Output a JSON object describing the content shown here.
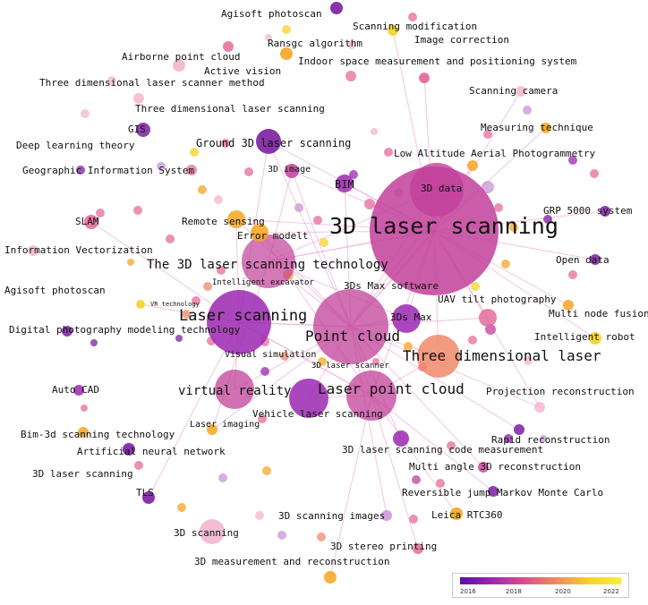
{
  "palette": {
    "purple": "#7b1fa2",
    "violet": "#9c27b0",
    "magenta": "#c2409a",
    "pink": "#e56b9b",
    "salmon": "#f08a6b",
    "orange": "#f5a623",
    "yellow": "#f5d327",
    "light_pink": "#f2b7cf",
    "lavender": "#c993d6",
    "edge": "#e9a8cf"
  },
  "labels": [
    {
      "id": "agisoft-top",
      "text": "Agisoft photoscan",
      "size": 11
    },
    {
      "id": "scanning-modification",
      "text": "Scanning modification",
      "size": 11
    },
    {
      "id": "image-correction",
      "text": "Image correction",
      "size": 11
    },
    {
      "id": "ransac",
      "text": "Ransgc algorithm",
      "size": 11
    },
    {
      "id": "airborne",
      "text": "Airborne point cloud",
      "size": 11
    },
    {
      "id": "indoor",
      "text": "Indoor space measurement and positioning system",
      "size": 11
    },
    {
      "id": "active-vision",
      "text": "Active vision",
      "size": 11
    },
    {
      "id": "tdlsm",
      "text": "Three dimensional laser scanner method",
      "size": 11
    },
    {
      "id": "scanning-camera",
      "text": "Scanning camera",
      "size": 11
    },
    {
      "id": "tdls",
      "text": "Three dimensional laser scanning",
      "size": 11
    },
    {
      "id": "measuring-technique",
      "text": "Measuring technique",
      "size": 11
    },
    {
      "id": "gis",
      "text": "GIS",
      "size": 11
    },
    {
      "id": "deep-learning",
      "text": "Deep learning theory",
      "size": 11
    },
    {
      "id": "ground-3d",
      "text": "Ground 3D laser scanning",
      "size": 12
    },
    {
      "id": "low-altitude",
      "text": "Low Altitude Aerial Photogrammetry",
      "size": 11
    },
    {
      "id": "geographic-is",
      "text": "Geographic Information System",
      "size": 11
    },
    {
      "id": "3d-image",
      "text": "3D image",
      "size": 10
    },
    {
      "id": "bim",
      "text": "BIM",
      "size": 12
    },
    {
      "id": "3d-data",
      "text": "3D data",
      "size": 11
    },
    {
      "id": "grp5000",
      "text": "GRP 5000 system",
      "size": 11
    },
    {
      "id": "slam",
      "text": "SLAM",
      "size": 11
    },
    {
      "id": "remote-sensing",
      "text": "Remote sensing",
      "size": 11
    },
    {
      "id": "3d-laser-scanning",
      "text": "3D laser scanning",
      "size": 25
    },
    {
      "id": "error-model",
      "text": "Error modelt",
      "size": 11
    },
    {
      "id": "info-vector",
      "text": "Information Vectorization",
      "size": 11
    },
    {
      "id": "open-data",
      "text": "Open data",
      "size": 11
    },
    {
      "id": "the-3d-tech",
      "text": "The 3D laser scanning technology",
      "size": 14
    },
    {
      "id": "agisoft-left",
      "text": "Agisoft photoscan",
      "size": 11
    },
    {
      "id": "intelligent-excavator",
      "text": "Intelligent excavator",
      "size": 9
    },
    {
      "id": "3ds-max-software",
      "text": "3Ds Max software",
      "size": 11
    },
    {
      "id": "uav",
      "text": "UAV tilt photography",
      "size": 11
    },
    {
      "id": "vr-technology",
      "text": "VR technology",
      "size": 7
    },
    {
      "id": "multi-node",
      "text": "Multi node fusion",
      "size": 11
    },
    {
      "id": "laser-scanning",
      "text": "Laser scanning",
      "size": 17
    },
    {
      "id": "3ds-max",
      "text": "3Ds Max",
      "size": 11
    },
    {
      "id": "digital-photo",
      "text": "Digital photography modeling technology",
      "size": 11
    },
    {
      "id": "point-cloud",
      "text": "Point cloud",
      "size": 16
    },
    {
      "id": "intelligent-robot",
      "text": "Intelligent robot",
      "size": 11
    },
    {
      "id": "visual-simulation",
      "text": "Visual simulation",
      "size": 10
    },
    {
      "id": "three-dim-laser",
      "text": "Three dimensional laser",
      "size": 16
    },
    {
      "id": "3d-laser-scanner",
      "text": "3D laser scanner",
      "size": 9
    },
    {
      "id": "auto-cad",
      "text": "Auto CAD",
      "size": 11
    },
    {
      "id": "virtual-reality",
      "text": "virtual reality",
      "size": 14
    },
    {
      "id": "laser-point-cloud",
      "text": "Laser point cloud",
      "size": 16
    },
    {
      "id": "projection-recon",
      "text": "Projection reconstruction",
      "size": 11
    },
    {
      "id": "vehicle-laser",
      "text": "Vehicle laser scanning",
      "size": 11
    },
    {
      "id": "laser-imaging",
      "text": "Laser imaging",
      "size": 10
    },
    {
      "id": "bim-3d",
      "text": "Bim-3d scanning technology",
      "size": 11
    },
    {
      "id": "rapid-recon",
      "text": "Rapid reconstruction",
      "size": 11
    },
    {
      "id": "ann",
      "text": "Artificial neural network",
      "size": 11
    },
    {
      "id": "code-measure",
      "text": "3D laser scanning code measurement",
      "size": 11
    },
    {
      "id": "3d-laser-scanning-left",
      "text": "3D laser scanning",
      "size": 11
    },
    {
      "id": "multi-angle",
      "text": "Multi angle 3D reconstruction",
      "size": 11
    },
    {
      "id": "tls",
      "text": "TLS",
      "size": 11
    },
    {
      "id": "reversible-jump",
      "text": "Reversible jump Markov Monte Carlo",
      "size": 11
    },
    {
      "id": "3d-scanning-images",
      "text": "3D scanning images",
      "size": 11
    },
    {
      "id": "leica",
      "text": "Leica RTC360",
      "size": 11
    },
    {
      "id": "3d-scanning",
      "text": "3D scanning",
      "size": 11
    },
    {
      "id": "3d-stereo",
      "text": "3D stereo printing",
      "size": 11
    },
    {
      "id": "3d-measurement",
      "text": "3D measurement and reconstruction",
      "size": 11
    }
  ],
  "nodes": [
    {
      "name": "3d-laser-scanning-node",
      "color": "magenta",
      "opacity": 0.85
    },
    {
      "name": "point-cloud-node",
      "color": "magenta",
      "opacity": 0.75
    },
    {
      "name": "laser-scanning-node",
      "color": "violet",
      "opacity": 0.85
    },
    {
      "name": "the-3d-tech-node",
      "color": "magenta",
      "opacity": 0.7
    },
    {
      "name": "laser-point-cloud-node",
      "color": "magenta",
      "opacity": 0.75
    },
    {
      "name": "three-dim-laser-node",
      "color": "salmon",
      "opacity": 0.85
    },
    {
      "name": "3d-data-node",
      "color": "magenta",
      "opacity": 0.8
    },
    {
      "name": "virtual-reality-node",
      "color": "magenta",
      "opacity": 0.75
    },
    {
      "name": "vehicle-laser-node",
      "color": "violet",
      "opacity": 0.85
    },
    {
      "name": "3ds-max-node",
      "color": "violet",
      "opacity": 0.85
    },
    {
      "name": "ground-3d-node",
      "color": "purple",
      "opacity": 0.9
    },
    {
      "name": "bim-node",
      "color": "violet",
      "opacity": 0.85
    },
    {
      "name": "3d-image-node",
      "color": "magenta",
      "opacity": 0.85
    },
    {
      "name": "remote-sensing-node",
      "color": "orange",
      "opacity": 0.85
    },
    {
      "name": "error-model-node",
      "color": "orange",
      "opacity": 0.85
    },
    {
      "name": "3d-scanning-node",
      "color": "light_pink",
      "opacity": 0.9
    },
    {
      "name": "slam-node",
      "color": "pink",
      "opacity": 0.9
    },
    {
      "name": "gis-node",
      "color": "purple",
      "opacity": 0.85
    },
    {
      "name": "uav-node",
      "color": "pink",
      "opacity": 0.85
    },
    {
      "name": "multi-node-node",
      "color": "orange",
      "opacity": 0.85
    },
    {
      "name": "intelligent-robot-node",
      "color": "yellow",
      "opacity": 0.9
    },
    {
      "name": "open-data-node",
      "color": "purple",
      "opacity": 0.85
    },
    {
      "name": "grp5000-node",
      "color": "purple",
      "opacity": 0.85
    },
    {
      "name": "low-altitude-node",
      "color": "orange",
      "opacity": 0.85
    },
    {
      "name": "code-measure-node",
      "color": "violet",
      "opacity": 0.85
    },
    {
      "name": "rapid-recon-node",
      "color": "purple",
      "opacity": 0.85
    },
    {
      "name": "leica-node",
      "color": "orange",
      "opacity": 0.9
    },
    {
      "name": "ann-node",
      "color": "purple",
      "opacity": 0.9
    },
    {
      "name": "tls-node",
      "color": "purple",
      "opacity": 0.9
    },
    {
      "name": "3d-stereo-node",
      "color": "pink",
      "opacity": 0.85
    },
    {
      "name": "scanning-modification-node",
      "color": "yellow",
      "opacity": 0.9
    },
    {
      "name": "agisoft-top-node",
      "color": "purple",
      "opacity": 0.9
    },
    {
      "name": "ransac-node",
      "color": "orange",
      "opacity": 0.9
    },
    {
      "name": "active-vision-node",
      "color": "pink",
      "opacity": 0.85
    },
    {
      "name": "airborne-node",
      "color": "light_pink",
      "opacity": 0.9
    },
    {
      "name": "auto-cad-node",
      "color": "violet",
      "opacity": 0.85
    },
    {
      "name": "digital-photo-node",
      "color": "purple",
      "opacity": 0.85
    },
    {
      "name": "vr-tech-node",
      "color": "yellow",
      "opacity": 0.9
    },
    {
      "name": "bim-3d-node",
      "color": "orange",
      "opacity": 0.85
    },
    {
      "name": "laser-imaging-node",
      "color": "orange",
      "opacity": 0.85
    },
    {
      "name": "3d-scanning-images-node",
      "color": "lavender",
      "opacity": 0.85
    },
    {
      "name": "3d-measurement-node",
      "color": "orange",
      "opacity": 0.85
    },
    {
      "name": "multi-angle-node",
      "color": "magenta",
      "opacity": 0.8
    },
    {
      "name": "projection-node",
      "color": "light_pink",
      "opacity": 0.85
    },
    {
      "name": "reversible-node",
      "color": "purple",
      "opacity": 0.85
    },
    {
      "name": "info-vector-node",
      "color": "light_pink",
      "opacity": 0.85
    },
    {
      "name": "scanning-camera-node",
      "color": "light_pink",
      "opacity": 0.85
    },
    {
      "name": "measuring-node",
      "color": "orange",
      "opacity": 0.85
    },
    {
      "name": "tdls-node",
      "color": "light_pink",
      "opacity": 0.85
    },
    {
      "name": "indoor-node",
      "color": "pink",
      "opacity": 0.85
    }
  ],
  "legend": {
    "gradient": [
      "#5b0ea6",
      "#9c27b0",
      "#d94f8a",
      "#f08a5d",
      "#f7d22a",
      "#f8ee3a"
    ],
    "ticks": [
      "2016",
      "2018",
      "2020",
      "2022"
    ]
  }
}
